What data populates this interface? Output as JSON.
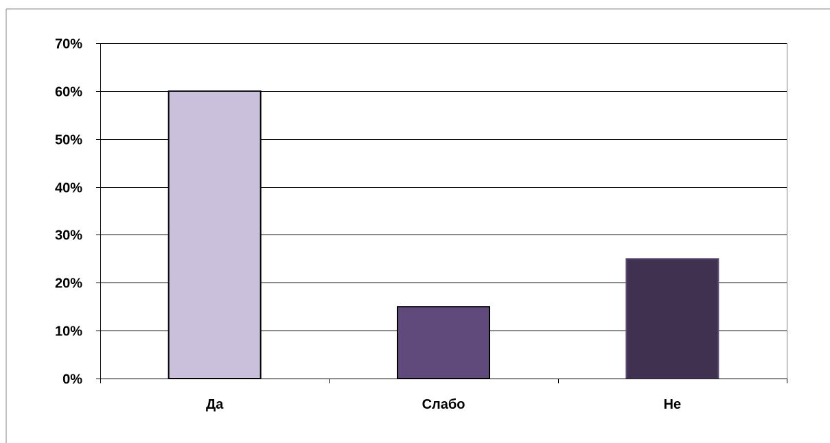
{
  "chart_data": {
    "type": "bar",
    "categories": [
      "Да",
      "Слабо",
      "Не"
    ],
    "values": [
      60,
      15,
      25
    ],
    "unit": "%",
    "ylim": [
      0,
      70
    ],
    "yticks": [
      0,
      10,
      20,
      30,
      40,
      50,
      60,
      70
    ],
    "ytick_labels": [
      "0%",
      "10%",
      "20%",
      "30%",
      "40%",
      "50%",
      "60%",
      "70%"
    ],
    "title": "",
    "xlabel": "",
    "ylabel": "",
    "grid": true,
    "legend": "none",
    "colors": [
      "#cbc0dc",
      "#604a7b",
      "#403151"
    ],
    "bar_outline": [
      "#000000",
      "#000000",
      "#5f497a"
    ]
  }
}
